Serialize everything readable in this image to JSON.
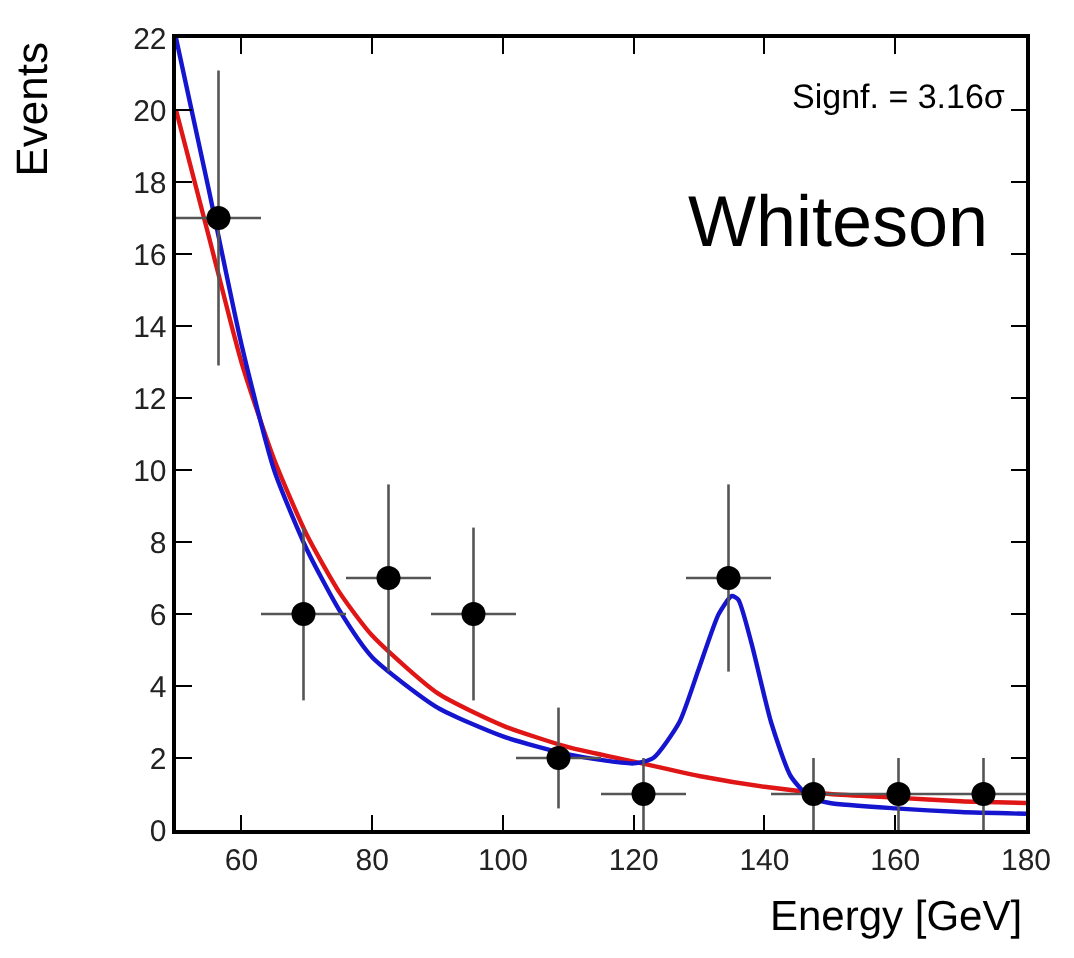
{
  "chart_data": {
    "type": "scatter",
    "xlabel": "Energy [GeV]",
    "ylabel": "Events",
    "annotations": [
      "Signf. = 3.16σ",
      "Whiteson"
    ],
    "xlim": [
      50,
      180
    ],
    "xticks": [
      60,
      80,
      100,
      120,
      140,
      160,
      180
    ],
    "ylim": [
      0,
      22
    ],
    "yticks": [
      0,
      2,
      4,
      6,
      8,
      10,
      12,
      14,
      16,
      18,
      20,
      22
    ],
    "series": [
      {
        "type": "line",
        "color": "#e01515",
        "marker": "none",
        "line_style": "solid",
        "x": [
          50,
          55,
          60,
          65,
          70,
          75,
          80,
          90,
          100,
          110,
          120,
          130,
          140,
          150,
          160,
          170,
          180
        ],
        "values": [
          20,
          16.5,
          13,
          10.3,
          8.2,
          6.6,
          5.4,
          3.8,
          2.9,
          2.3,
          1.9,
          1.5,
          1.2,
          1.0,
          0.9,
          0.8,
          0.75
        ]
      },
      {
        "type": "line",
        "color": "#1515d0",
        "marker": "none",
        "line_style": "solid",
        "x": [
          50,
          55,
          60,
          65,
          70,
          75,
          80,
          90,
          100,
          110,
          120,
          123,
          127,
          130,
          133,
          135,
          136,
          138,
          141,
          144,
          147,
          150,
          160,
          170,
          180
        ],
        "values": [
          22,
          17.8,
          13.5,
          10,
          7.8,
          6.1,
          4.8,
          3.4,
          2.6,
          2.1,
          1.85,
          2.0,
          3.0,
          4.5,
          6.0,
          6.5,
          6.4,
          5.2,
          3.0,
          1.5,
          0.9,
          0.75,
          0.6,
          0.5,
          0.45
        ]
      },
      {
        "color": "#000000",
        "marker": "circle",
        "x": [
          56.5,
          69.5,
          82.5,
          95.5,
          108.5,
          121.5,
          134.5,
          147.5,
          160.5,
          173.5
        ],
        "values": [
          17,
          6,
          7,
          6,
          2,
          1,
          7,
          1,
          1,
          1
        ],
        "errors": [
          4.1,
          2.4,
          2.6,
          2.4,
          1.4,
          1,
          2.6,
          1,
          1,
          1
        ],
        "xerrors": [
          6.5,
          6.5,
          6.5,
          6.5,
          6.5,
          6.5,
          6.5,
          6.5,
          6.5,
          6.5
        ]
      }
    ]
  }
}
